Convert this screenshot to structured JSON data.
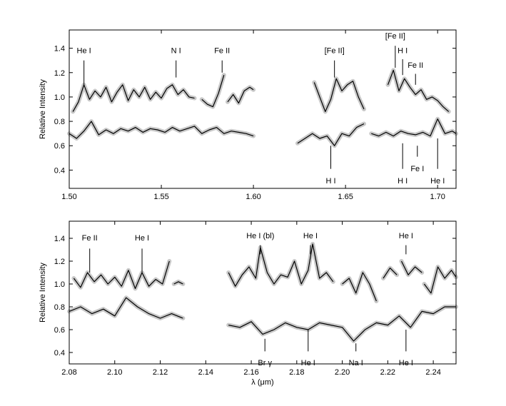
{
  "chart_data": [
    {
      "type": "line",
      "xlim": [
        1.5,
        1.71
      ],
      "ylim": [
        0.25,
        1.55
      ],
      "xticks": [
        "1.50",
        "1.55",
        "1.60",
        "1.65",
        "1.70"
      ],
      "yticks": [
        "0.4",
        "0.6",
        "0.8",
        "1.0",
        "1.2",
        "1.4"
      ],
      "xlabel": "",
      "ylabel": "Relative Intensity",
      "grid": false,
      "series": [
        {
          "segments": [
            {
              "x": [
                1.502,
                1.505,
                1.508,
                1.511,
                1.514,
                1.517,
                1.52,
                1.523,
                1.526,
                1.529,
                1.532,
                1.535,
                1.538,
                1.541,
                1.544,
                1.547,
                1.55,
                1.553,
                1.556,
                1.559,
                1.562,
                1.565,
                1.568
              ],
              "y": [
                0.88,
                0.96,
                1.1,
                0.98,
                1.05,
                1.0,
                1.08,
                0.96,
                1.04,
                1.1,
                0.97,
                1.06,
                1.0,
                1.08,
                0.98,
                1.04,
                0.99,
                1.07,
                1.1,
                1.02,
                1.06,
                1.0,
                0.99
              ]
            },
            {
              "x": [
                1.572,
                1.575,
                1.578,
                1.581,
                1.584
              ],
              "y": [
                0.98,
                0.94,
                0.92,
                1.03,
                1.18
              ]
            },
            {
              "x": [
                1.586,
                1.589,
                1.592,
                1.595,
                1.598,
                1.6
              ],
              "y": [
                0.96,
                1.02,
                0.95,
                1.05,
                1.08,
                1.06
              ]
            },
            {
              "x": [
                1.633,
                1.636,
                1.639,
                1.642,
                1.645,
                1.648,
                1.651,
                1.654,
                1.657,
                1.66
              ],
              "y": [
                1.12,
                1.0,
                0.88,
                0.98,
                1.15,
                1.05,
                1.1,
                1.13,
                1.0,
                0.9
              ]
            },
            {
              "x": [
                1.673,
                1.676,
                1.679,
                1.682,
                1.685,
                1.688,
                1.691,
                1.694,
                1.697,
                1.7,
                1.703,
                1.706
              ],
              "y": [
                1.1,
                1.22,
                1.05,
                1.15,
                1.08,
                1.02,
                1.06,
                0.98,
                1.0,
                0.97,
                0.92,
                0.88
              ]
            }
          ]
        },
        {
          "segments": [
            {
              "x": [
                1.5,
                1.504,
                1.508,
                1.512,
                1.516,
                1.52,
                1.524,
                1.528,
                1.532,
                1.536,
                1.54,
                1.544,
                1.548,
                1.552,
                1.556,
                1.56,
                1.564,
                1.568,
                1.572,
                1.576,
                1.58,
                1.584,
                1.588,
                1.592,
                1.596,
                1.6
              ],
              "y": [
                0.7,
                0.66,
                0.72,
                0.8,
                0.69,
                0.73,
                0.7,
                0.74,
                0.72,
                0.75,
                0.71,
                0.74,
                0.73,
                0.71,
                0.75,
                0.72,
                0.74,
                0.76,
                0.7,
                0.73,
                0.75,
                0.7,
                0.72,
                0.71,
                0.7,
                0.68
              ]
            },
            {
              "x": [
                1.624,
                1.628,
                1.632,
                1.636,
                1.64,
                1.644,
                1.648,
                1.652,
                1.656,
                1.66
              ],
              "y": [
                0.62,
                0.66,
                0.7,
                0.66,
                0.68,
                0.6,
                0.7,
                0.68,
                0.75,
                0.78
              ]
            },
            {
              "x": [
                1.664,
                1.668,
                1.672,
                1.676,
                1.68,
                1.684,
                1.688,
                1.692,
                1.696,
                1.7,
                1.704,
                1.708,
                1.71
              ],
              "y": [
                0.7,
                0.68,
                0.71,
                0.68,
                0.72,
                0.7,
                0.69,
                0.71,
                0.68,
                0.82,
                0.7,
                0.72,
                0.7
              ]
            }
          ]
        }
      ],
      "annotations": [
        {
          "text": "He I",
          "x": 1.508,
          "y_text": 1.36,
          "y_line": [
            1.3,
            1.1
          ],
          "side": "above"
        },
        {
          "text": "N I",
          "x": 1.558,
          "y_text": 1.36,
          "y_line": [
            1.3,
            1.16
          ],
          "side": "above"
        },
        {
          "text": "Fe II",
          "x": 1.583,
          "y_text": 1.36,
          "y_line": [
            1.3,
            1.2
          ],
          "side": "above"
        },
        {
          "text": "[Fe II]",
          "x": 1.644,
          "y_text": 1.36,
          "y_line": [
            1.3,
            1.16
          ],
          "side": "above"
        },
        {
          "text": "[Fe II]",
          "x": 1.677,
          "y_text": 1.48,
          "y_line": [
            1.42,
            1.24
          ],
          "side": "above"
        },
        {
          "text": "H I",
          "x": 1.681,
          "y_text": 1.36,
          "y_line": [
            1.31,
            1.18
          ],
          "side": "above"
        },
        {
          "text": "Fe II",
          "x": 1.688,
          "y_text": 1.24,
          "y_line": [
            1.19,
            1.1
          ],
          "side": "above"
        },
        {
          "text": "H I",
          "x": 1.642,
          "y_text": 0.35,
          "y_line": [
            0.6,
            0.41
          ],
          "side": "below"
        },
        {
          "text": "Fe I",
          "x": 1.689,
          "y_text": 0.45,
          "y_line": [
            0.6,
            0.51
          ],
          "side": "below"
        },
        {
          "text": "H I",
          "x": 1.681,
          "y_text": 0.35,
          "y_line": [
            0.62,
            0.41
          ],
          "side": "below"
        },
        {
          "text": "He I",
          "x": 1.7,
          "y_text": 0.35,
          "y_line": [
            0.66,
            0.41
          ],
          "side": "below"
        }
      ]
    },
    {
      "type": "line",
      "xlim": [
        2.08,
        2.25
      ],
      "ylim": [
        0.3,
        1.55
      ],
      "xticks": [
        "2.08",
        "2.10",
        "2.12",
        "2.14",
        "2.16",
        "2.18",
        "2.20",
        "2.22",
        "2.24"
      ],
      "yticks": [
        "0.4",
        "0.6",
        "0.8",
        "1.0",
        "1.2",
        "1.4"
      ],
      "xlabel": "λ (μm)",
      "ylabel": "Relative Intensity",
      "grid": false,
      "series": [
        {
          "segments": [
            {
              "x": [
                2.082,
                2.085,
                2.088,
                2.091,
                2.094,
                2.097,
                2.1,
                2.103,
                2.106,
                2.109,
                2.112,
                2.115,
                2.118,
                2.121,
                2.124
              ],
              "y": [
                1.05,
                0.97,
                1.1,
                1.02,
                1.08,
                1.0,
                1.06,
                0.98,
                1.12,
                0.96,
                1.1,
                0.98,
                1.04,
                1.0,
                1.2
              ]
            },
            {
              "x": [
                2.126,
                2.128,
                2.13
              ],
              "y": [
                1.0,
                1.02,
                1.0
              ]
            },
            {
              "x": [
                2.15,
                2.153,
                2.156,
                2.159,
                2.162,
                2.164,
                2.167,
                2.17,
                2.173,
                2.176,
                2.179,
                2.182,
                2.185,
                2.187,
                2.19,
                2.193,
                2.196
              ],
              "y": [
                1.1,
                0.98,
                1.08,
                1.15,
                1.05,
                1.32,
                1.1,
                1.0,
                1.08,
                1.06,
                1.2,
                1.0,
                1.12,
                1.35,
                1.05,
                1.1,
                1.02
              ]
            },
            {
              "x": [
                2.2,
                2.203,
                2.206,
                2.209,
                2.212,
                2.215
              ],
              "y": [
                1.0,
                1.05,
                0.92,
                1.1,
                1.0,
                0.85
              ]
            },
            {
              "x": [
                2.218,
                2.221,
                2.224
              ],
              "y": [
                1.05,
                1.14,
                1.08
              ]
            },
            {
              "x": [
                2.226,
                2.229,
                2.232,
                2.235
              ],
              "y": [
                1.2,
                1.08,
                1.15,
                1.1
              ]
            },
            {
              "x": [
                2.236,
                2.239,
                2.242,
                2.245,
                2.248,
                2.25
              ],
              "y": [
                1.0,
                0.92,
                1.15,
                1.05,
                1.12,
                1.06
              ]
            }
          ]
        },
        {
          "segments": [
            {
              "x": [
                2.08,
                2.085,
                2.09,
                2.095,
                2.1,
                2.105,
                2.11,
                2.115,
                2.12,
                2.125,
                2.13
              ],
              "y": [
                0.76,
                0.8,
                0.74,
                0.78,
                0.72,
                0.88,
                0.8,
                0.74,
                0.7,
                0.74,
                0.7
              ]
            },
            {
              "x": [
                2.15,
                2.155,
                2.16,
                2.165,
                2.17,
                2.175,
                2.18,
                2.185,
                2.19,
                2.195,
                2.2,
                2.205,
                2.21,
                2.215,
                2.22,
                2.225,
                2.23,
                2.235,
                2.24,
                2.245,
                2.25
              ],
              "y": [
                0.64,
                0.62,
                0.67,
                0.56,
                0.6,
                0.66,
                0.62,
                0.6,
                0.66,
                0.64,
                0.62,
                0.5,
                0.6,
                0.66,
                0.64,
                0.72,
                0.62,
                0.76,
                0.74,
                0.8,
                0.8
              ]
            }
          ]
        }
      ],
      "annotations": [
        {
          "text": "Fe II",
          "x": 2.089,
          "y_text": 1.38,
          "y_line": [
            1.31,
            1.1
          ],
          "side": "above"
        },
        {
          "text": "He I",
          "x": 2.112,
          "y_text": 1.38,
          "y_line": [
            1.31,
            1.1
          ],
          "side": "above"
        },
        {
          "text": "He I (bl)",
          "x": 2.164,
          "y_text": 1.4,
          "y_line": [
            1.34,
            1.26
          ],
          "side": "above"
        },
        {
          "text": "He I",
          "x": 2.186,
          "y_text": 1.4,
          "y_line": [
            1.34,
            1.26
          ],
          "side": "above"
        },
        {
          "text": "He I",
          "x": 2.228,
          "y_text": 1.4,
          "y_line": [
            1.34,
            1.26
          ],
          "side": "above"
        },
        {
          "text": "Br γ",
          "x": 2.166,
          "y_text": 0.35,
          "y_line": [
            0.52,
            0.41
          ],
          "side": "below"
        },
        {
          "text": "He I",
          "x": 2.185,
          "y_text": 0.35,
          "y_line": [
            0.6,
            0.41
          ],
          "side": "below"
        },
        {
          "text": "Na I",
          "x": 2.206,
          "y_text": 0.35,
          "y_line": [
            0.48,
            0.41
          ],
          "side": "below"
        },
        {
          "text": "He I",
          "x": 2.228,
          "y_text": 0.35,
          "y_line": [
            0.6,
            0.41
          ],
          "side": "below"
        }
      ]
    }
  ]
}
